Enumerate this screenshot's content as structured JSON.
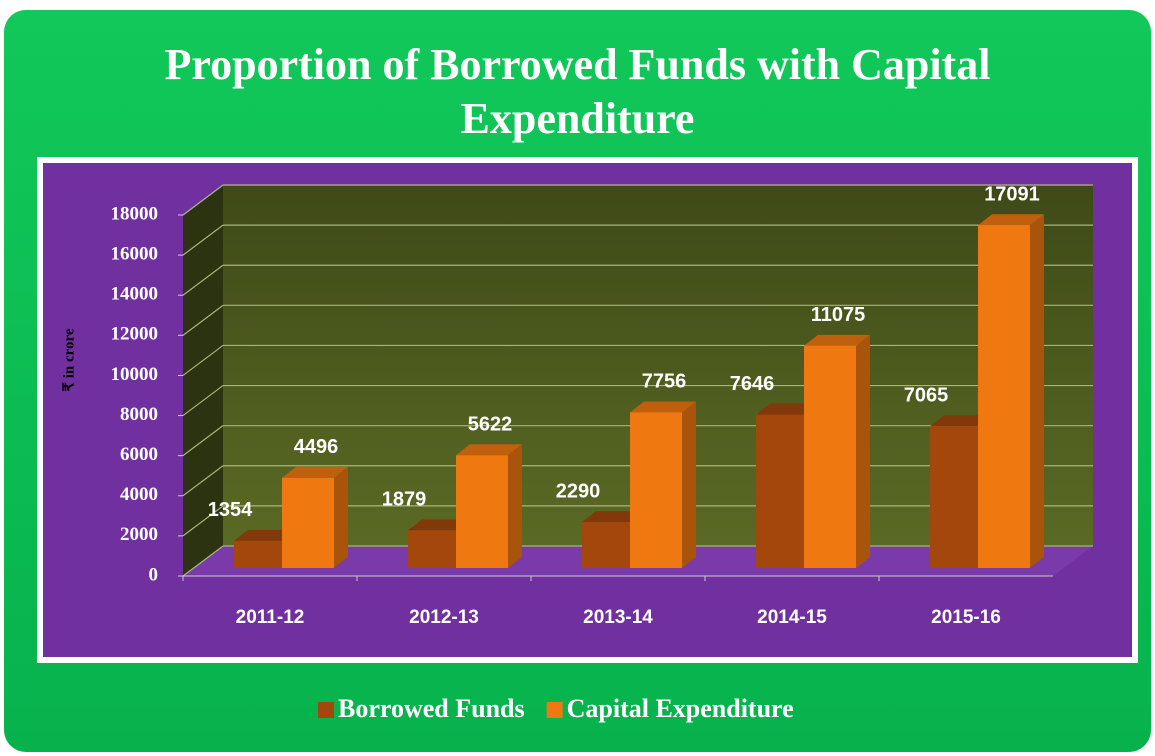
{
  "chart_data": {
    "type": "bar3d",
    "title": "Proportion of Borrowed Funds with Capital Expenditure",
    "y_axis_label": "₹ in crore",
    "categories": [
      "2011-12",
      "2012-13",
      "2013-14",
      "2014-15",
      "2015-16"
    ],
    "series": [
      {
        "name": "Borrowed Funds",
        "color": "#a3470c",
        "values": [
          1354,
          1879,
          2290,
          7646,
          7065
        ]
      },
      {
        "name": "Capital Expenditure",
        "color": "#f07810",
        "values": [
          4496,
          5622,
          7756,
          11075,
          17091
        ]
      }
    ],
    "ylim": [
      0,
      18000
    ],
    "yticks": [
      0,
      2000,
      4000,
      6000,
      8000,
      10000,
      12000,
      14000,
      16000,
      18000
    ],
    "grid": true
  }
}
